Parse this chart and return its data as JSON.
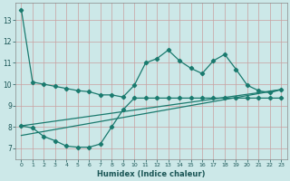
{
  "xlabel": "Humidex (Indice chaleur)",
  "bg_color": "#cce8e8",
  "grid_color": "#b0c8c8",
  "line_color": "#1a7a6e",
  "xlim": [
    -0.5,
    23.5
  ],
  "ylim": [
    6.5,
    13.8
  ],
  "yticks": [
    7,
    8,
    9,
    10,
    11,
    12,
    13
  ],
  "xticks": [
    0,
    1,
    2,
    3,
    4,
    5,
    6,
    7,
    8,
    9,
    10,
    11,
    12,
    13,
    14,
    15,
    16,
    17,
    18,
    19,
    20,
    21,
    22,
    23
  ],
  "series1_x": [
    0,
    1,
    2,
    3,
    4,
    5,
    6,
    7,
    8,
    9,
    10,
    11,
    12,
    13,
    14,
    15,
    16,
    17,
    18,
    19,
    20,
    21,
    22,
    23
  ],
  "series1_y": [
    13.5,
    10.1,
    10.0,
    9.9,
    9.8,
    9.7,
    9.65,
    9.5,
    9.5,
    9.4,
    9.95,
    11.0,
    11.2,
    11.6,
    11.1,
    10.75,
    10.5,
    11.1,
    11.4,
    10.7,
    9.95,
    9.7,
    9.6,
    9.75
  ],
  "series2_x": [
    0,
    1,
    2,
    3,
    4,
    5,
    6,
    7,
    8,
    9,
    10,
    11,
    12,
    13,
    14,
    15,
    16,
    17,
    18,
    19,
    20,
    21,
    22,
    23
  ],
  "series2_y": [
    8.05,
    7.95,
    7.55,
    7.35,
    7.1,
    7.05,
    7.05,
    7.2,
    8.0,
    8.8,
    9.35,
    9.35,
    9.35,
    9.35,
    9.35,
    9.35,
    9.35,
    9.35,
    9.35,
    9.35,
    9.35,
    9.35,
    9.35,
    9.35
  ],
  "series3_x": [
    0,
    23
  ],
  "series3_y": [
    7.6,
    9.75
  ],
  "series4_x": [
    0,
    23
  ],
  "series4_y": [
    8.05,
    9.75
  ]
}
